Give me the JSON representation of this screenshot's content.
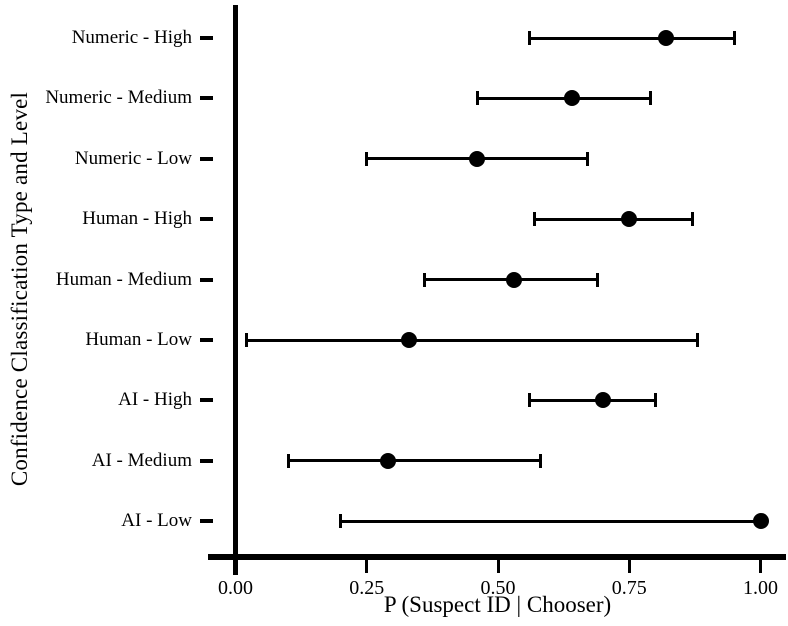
{
  "chart_data": {
    "type": "scatter",
    "subtype": "forest-plot-with-error-bars",
    "title": "",
    "xlabel": "P (Suspect ID | Chooser)",
    "ylabel": "Confidence Classification Type and Level",
    "xlim": [
      0,
      1.05
    ],
    "xticks": [
      0.0,
      0.25,
      0.5,
      0.75,
      1.0
    ],
    "xtick_labels": [
      "0.00",
      "0.25",
      "0.50",
      "0.75",
      "1.00"
    ],
    "grid": "off",
    "legend": "none",
    "points": [
      {
        "label": "Numeric - High",
        "estimate": 0.82,
        "ci_low": 0.56,
        "ci_high": 0.95
      },
      {
        "label": "Numeric - Medium",
        "estimate": 0.64,
        "ci_low": 0.46,
        "ci_high": 0.79
      },
      {
        "label": "Numeric - Low",
        "estimate": 0.46,
        "ci_low": 0.25,
        "ci_high": 0.67
      },
      {
        "label": "Human - High",
        "estimate": 0.75,
        "ci_low": 0.57,
        "ci_high": 0.87
      },
      {
        "label": "Human - Medium",
        "estimate": 0.53,
        "ci_low": 0.36,
        "ci_high": 0.69
      },
      {
        "label": "Human - Low",
        "estimate": 0.33,
        "ci_low": 0.02,
        "ci_high": 0.88
      },
      {
        "label": "AI - High",
        "estimate": 0.7,
        "ci_low": 0.56,
        "ci_high": 0.8
      },
      {
        "label": "AI - Medium",
        "estimate": 0.29,
        "ci_low": 0.1,
        "ci_high": 0.58
      },
      {
        "label": "AI - Low",
        "estimate": 1.0,
        "ci_low": 0.2,
        "ci_high": 1.0
      }
    ],
    "colors": {
      "marker": "#000000",
      "error_bar": "#000000",
      "axis": "#000000",
      "background": "#ffffff"
    }
  }
}
